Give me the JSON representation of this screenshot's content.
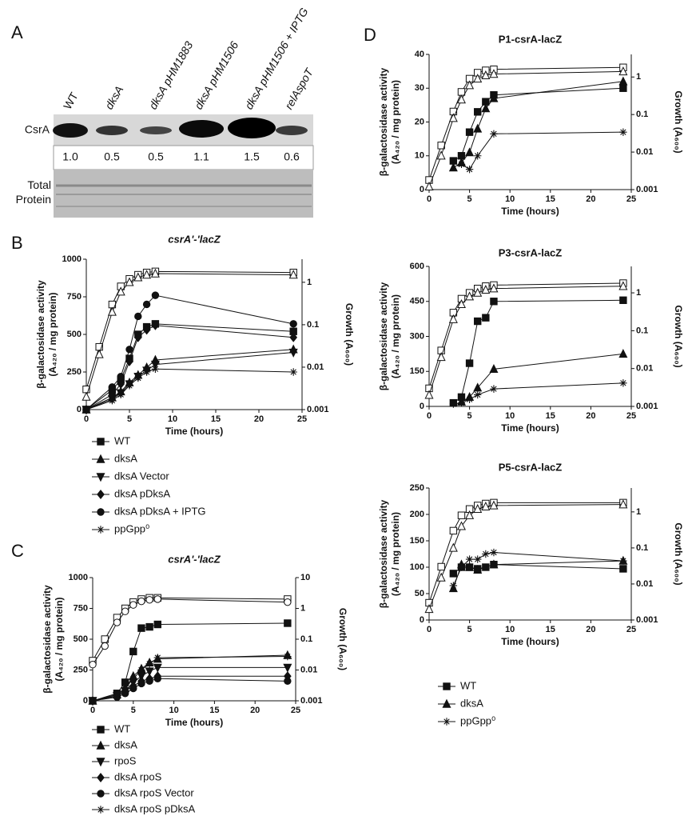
{
  "blot": {
    "panel": "A",
    "lanes": [
      "WT",
      "dksA",
      "dksA pHM1883",
      "dksA pHM1506",
      "dksA pHM1506 + IPTG",
      "relAspoT"
    ],
    "rows": [
      "CsrA",
      "Total Protein"
    ],
    "quantification": [
      "1.0",
      "0.5",
      "0.5",
      "1.1",
      "1.5",
      "0.6"
    ]
  },
  "chart_data": [
    {
      "type": "line",
      "panel": "B",
      "title": "csrA'-'lacZ",
      "color": "#111111",
      "xlabel": "Time (hours)",
      "ylabel": [
        "β-galactosidase activity",
        "(A₄₂₀ / mg protein)"
      ],
      "y2label": "Growth (A₆₀₀)",
      "xlim": [
        0,
        25
      ],
      "xticks": [
        0,
        5,
        10,
        15,
        20,
        25
      ],
      "ylim": [
        0,
        1000
      ],
      "yticks": [
        0,
        250,
        500,
        750,
        1000
      ],
      "y2lim": [
        0.001,
        3.5
      ],
      "y2ticks": [
        0.001,
        0.01,
        0.1,
        1
      ],
      "y2log": true,
      "legend": "below",
      "series": [
        {
          "name": "WT",
          "marker": "square",
          "x": [
            0,
            3,
            4,
            5,
            6,
            7,
            8,
            24
          ],
          "values": [
            0,
            130,
            200,
            340,
            500,
            550,
            570,
            520
          ]
        },
        {
          "name": "dksA",
          "marker": "triangle",
          "x": [
            0,
            3,
            4,
            5,
            6,
            7,
            8,
            24
          ],
          "values": [
            0,
            80,
            120,
            180,
            230,
            280,
            330,
            400
          ]
        },
        {
          "name": "dksA Vector",
          "marker": "triangle-down",
          "x": [
            0,
            3,
            4,
            5,
            6,
            7,
            8,
            24
          ],
          "values": [
            0,
            70,
            110,
            170,
            220,
            260,
            300,
            380
          ]
        },
        {
          "name": "dksA pDksA",
          "marker": "diamond",
          "x": [
            0,
            3,
            4,
            5,
            6,
            7,
            8,
            24
          ],
          "values": [
            0,
            100,
            170,
            320,
            480,
            530,
            560,
            480
          ]
        },
        {
          "name": "dksA pDksA + IPTG",
          "marker": "circle",
          "x": [
            0,
            3,
            4,
            5,
            6,
            7,
            8,
            24
          ],
          "values": [
            0,
            150,
            220,
            400,
            620,
            700,
            760,
            570
          ]
        },
        {
          "name": "ppGpp⁰",
          "marker": "star",
          "x": [
            0,
            3,
            4,
            5,
            6,
            7,
            8,
            24
          ],
          "values": [
            0,
            60,
            100,
            160,
            210,
            250,
            270,
            250
          ]
        },
        {
          "marker": "open-square",
          "axis": "y2",
          "x": [
            0,
            1.5,
            3,
            4,
            5,
            6,
            7,
            8,
            24
          ],
          "values": [
            0.003,
            0.03,
            0.3,
            0.8,
            1.2,
            1.5,
            1.7,
            1.8,
            1.7
          ]
        },
        {
          "marker": "open-triangle",
          "axis": "y2",
          "x": [
            0,
            1.5,
            3,
            4,
            5,
            6,
            7,
            8,
            24
          ],
          "values": [
            0.002,
            0.02,
            0.2,
            0.6,
            1.0,
            1.3,
            1.5,
            1.6,
            1.5
          ]
        }
      ]
    },
    {
      "type": "line",
      "panel": "C",
      "title": "csrA'-'lacZ",
      "color": "#111111",
      "xlabel": "Time (hours)",
      "ylabel": [
        "β-galactosidase activity",
        "(A₄₂₀ / mg protein)"
      ],
      "y2label": "Growth (A₆₀₀)",
      "xlim": [
        0,
        25
      ],
      "xticks": [
        0,
        5,
        10,
        15,
        20,
        25
      ],
      "ylim": [
        0,
        1000
      ],
      "yticks": [
        0,
        250,
        500,
        750,
        1000
      ],
      "y2lim": [
        0.001,
        10
      ],
      "y2ticks": [
        0.001,
        0.01,
        0.1,
        1,
        10
      ],
      "y2log": true,
      "legend": "below",
      "series": [
        {
          "name": "WT",
          "marker": "square",
          "x": [
            0,
            3,
            4,
            5,
            6,
            7,
            8,
            24
          ],
          "values": [
            0,
            60,
            150,
            400,
            590,
            600,
            620,
            630
          ]
        },
        {
          "name": "dksA",
          "marker": "triangle",
          "x": [
            0,
            3,
            4,
            5,
            6,
            7,
            8,
            24
          ],
          "values": [
            0,
            50,
            100,
            200,
            260,
            310,
            340,
            370
          ]
        },
        {
          "name": "rpoS",
          "marker": "triangle-down",
          "x": [
            0,
            3,
            4,
            5,
            6,
            7,
            8,
            24
          ],
          "values": [
            0,
            40,
            80,
            150,
            200,
            240,
            270,
            270
          ]
        },
        {
          "name": "dksA rpoS",
          "marker": "diamond",
          "x": [
            0,
            3,
            4,
            5,
            6,
            7,
            8,
            24
          ],
          "values": [
            0,
            40,
            80,
            120,
            160,
            180,
            200,
            200
          ]
        },
        {
          "name": "dksA rpoS Vector",
          "marker": "circle",
          "x": [
            0,
            3,
            4,
            5,
            6,
            7,
            8,
            24
          ],
          "values": [
            0,
            30,
            60,
            100,
            140,
            160,
            180,
            160
          ]
        },
        {
          "name": "dksA rpoS pDksA",
          "marker": "star",
          "x": [
            0,
            3,
            4,
            5,
            6,
            7,
            8,
            24
          ],
          "values": [
            0,
            50,
            100,
            180,
            250,
            300,
            350,
            360
          ]
        },
        {
          "marker": "open-square",
          "axis": "y2",
          "x": [
            0,
            1.5,
            3,
            4,
            5,
            6,
            7,
            8,
            24
          ],
          "values": [
            0.02,
            0.1,
            0.5,
            1,
            1.6,
            2,
            2.2,
            2.2,
            2
          ]
        },
        {
          "marker": "open-circle",
          "axis": "y2",
          "x": [
            0,
            1.5,
            3,
            4,
            5,
            6,
            7,
            8,
            24
          ],
          "values": [
            0.015,
            0.06,
            0.35,
            0.8,
            1.3,
            1.7,
            1.9,
            2,
            1.6
          ]
        }
      ]
    },
    {
      "type": "line",
      "panel": "D",
      "title": "P1-csrA-lacZ",
      "color": "#111111",
      "xlabel": "Time (hours)",
      "ylabel": [
        "β-galactosidase activity",
        "(A₄₂₀ / mg protein)"
      ],
      "y2label": "Growth (A₆₀₀)",
      "xlim": [
        0,
        25
      ],
      "xticks": [
        0,
        5,
        10,
        15,
        20,
        25
      ],
      "ylim": [
        0,
        40
      ],
      "yticks": [
        0,
        10,
        20,
        30,
        40
      ],
      "y2lim": [
        0.001,
        4
      ],
      "y2ticks": [
        0.001,
        0.01,
        0.1,
        1
      ],
      "y2log": true,
      "series": [
        {
          "marker": "square",
          "x": [
            3,
            4,
            5,
            6,
            7,
            8,
            24
          ],
          "values": [
            8.5,
            10,
            17,
            23,
            26,
            28,
            30
          ]
        },
        {
          "marker": "triangle",
          "x": [
            3,
            4,
            5,
            6,
            7,
            8,
            24
          ],
          "values": [
            6.5,
            8,
            11,
            18,
            24,
            27,
            32
          ]
        },
        {
          "marker": "star",
          "x": [
            4,
            5,
            6,
            8,
            24
          ],
          "values": [
            7.5,
            6,
            10,
            16.5,
            17
          ]
        },
        {
          "marker": "open-square",
          "axis": "y2",
          "x": [
            0,
            1.5,
            3,
            4,
            5,
            6,
            7,
            8,
            24
          ],
          "values": [
            0.0018,
            0.015,
            0.12,
            0.4,
            0.9,
            1.3,
            1.5,
            1.6,
            1.8
          ]
        },
        {
          "marker": "open-triangle",
          "axis": "y2",
          "x": [
            0,
            1.5,
            3,
            4,
            5,
            6,
            7,
            8,
            24
          ],
          "values": [
            0.0012,
            0.008,
            0.08,
            0.25,
            0.6,
            0.9,
            1.1,
            1.2,
            1.4
          ]
        }
      ]
    },
    {
      "type": "line",
      "title": "P3-csrA-lacZ",
      "color": "#111111",
      "xlabel": "Time (hours)",
      "ylabel": [
        "β-galactosidase activity",
        "(A₄₂₀ / mg protein)"
      ],
      "y2label": "Growth (A₆₀₀)",
      "xlim": [
        0,
        25
      ],
      "xticks": [
        0,
        5,
        10,
        15,
        20,
        25
      ],
      "ylim": [
        0,
        600
      ],
      "yticks": [
        0,
        150,
        300,
        450,
        600
      ],
      "y2lim": [
        0.001,
        5
      ],
      "y2ticks": [
        0.001,
        0.01,
        0.1,
        1
      ],
      "y2log": true,
      "series": [
        {
          "marker": "square",
          "x": [
            3,
            4,
            5,
            6,
            7,
            8,
            24
          ],
          "values": [
            15,
            40,
            185,
            365,
            380,
            450,
            455
          ]
        },
        {
          "marker": "triangle",
          "x": [
            4,
            5,
            6,
            8,
            24
          ],
          "values": [
            20,
            40,
            80,
            160,
            225
          ]
        },
        {
          "marker": "star",
          "x": [
            3,
            4,
            5,
            6,
            8,
            24
          ],
          "values": [
            10,
            15,
            30,
            50,
            75,
            100
          ]
        },
        {
          "marker": "open-square",
          "axis": "y2",
          "x": [
            0,
            1.5,
            3,
            4,
            5,
            6,
            7,
            8,
            24
          ],
          "values": [
            0.003,
            0.03,
            0.3,
            0.7,
            1.0,
            1.3,
            1.5,
            1.6,
            1.8
          ]
        },
        {
          "marker": "open-triangle",
          "axis": "y2",
          "x": [
            0,
            1.5,
            3,
            4,
            5,
            6,
            7,
            8,
            24
          ],
          "values": [
            0.002,
            0.02,
            0.2,
            0.5,
            0.8,
            1.0,
            1.2,
            1.3,
            1.5
          ]
        }
      ]
    },
    {
      "type": "line",
      "title": "P5-csrA-lacZ",
      "color": "#111111",
      "xlabel": "Time (hours)",
      "ylabel": [
        "β-galactosidase activity",
        "(A₄₂₀ / mg protein)"
      ],
      "y2label": "Growth (A₆₀₀)",
      "xlim": [
        0,
        25
      ],
      "xticks": [
        0,
        5,
        10,
        15,
        20,
        25
      ],
      "ylim": [
        0,
        250
      ],
      "yticks": [
        0,
        50,
        100,
        150,
        200,
        250
      ],
      "y2lim": [
        0.001,
        4.6
      ],
      "y2ticks": [
        0.001,
        0.01,
        0.1,
        1
      ],
      "y2log": true,
      "legend": "below",
      "series": [
        {
          "name": "WT",
          "marker": "square",
          "x": [
            3,
            4,
            5,
            6,
            7,
            8,
            24
          ],
          "values": [
            88,
            100,
            100,
            97,
            100,
            105,
            97
          ]
        },
        {
          "name": "dksA",
          "marker": "triangle",
          "x": [
            3,
            4,
            5,
            6,
            8,
            24
          ],
          "values": [
            60,
            105,
            100,
            95,
            105,
            112
          ]
        },
        {
          "name": "ppGpp⁰",
          "marker": "star",
          "x": [
            3,
            4,
            5,
            6,
            7,
            8,
            24
          ],
          "values": [
            65,
            100,
            115,
            115,
            125,
            128,
            112
          ]
        },
        {
          "marker": "open-square",
          "axis": "y2",
          "x": [
            0,
            1.5,
            3,
            4,
            5,
            6,
            7,
            8,
            24
          ],
          "values": [
            0.003,
            0.03,
            0.3,
            0.8,
            1.2,
            1.5,
            1.7,
            1.8,
            1.8
          ]
        },
        {
          "marker": "open-triangle",
          "axis": "y2",
          "x": [
            0,
            1.5,
            3,
            4,
            5,
            6,
            7,
            8,
            24
          ],
          "values": [
            0.002,
            0.015,
            0.1,
            0.4,
            0.8,
            1.2,
            1.4,
            1.5,
            1.6
          ]
        }
      ]
    }
  ]
}
